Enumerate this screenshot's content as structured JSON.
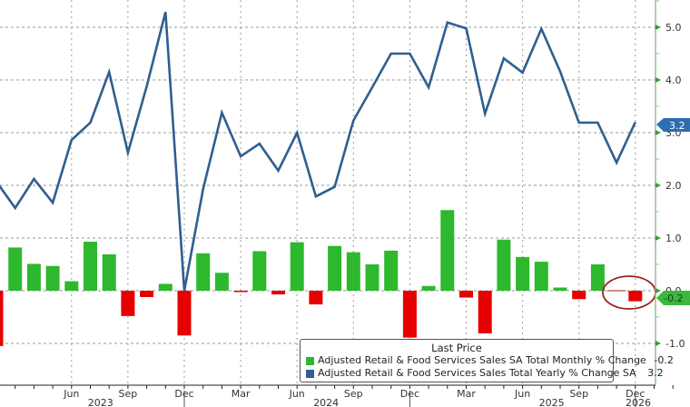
{
  "chart_data": {
    "type": "bar+line",
    "title": "",
    "xlabel": "",
    "ylabel": "",
    "ylim": [
      -1.7,
      5.5
    ],
    "y_ticks": [
      -1.0,
      0.0,
      1.0,
      2.0,
      3.0,
      4.0,
      5.0
    ],
    "y_tick_labels": [
      "-1.0",
      "0.0",
      "1.0",
      "2.0",
      "3.0",
      "4.0",
      "5.0"
    ],
    "x_tick_labels": [
      {
        "label": "Jun",
        "year": "2023"
      },
      {
        "label": "Sep",
        "year": ""
      },
      {
        "label": "Dec",
        "year": ""
      },
      {
        "label": "Mar",
        "year": ""
      },
      {
        "label": "Jun",
        "year": "2024"
      },
      {
        "label": "Sep",
        "year": ""
      },
      {
        "label": "Dec",
        "year": ""
      },
      {
        "label": "Mar",
        "year": ""
      },
      {
        "label": "Jun",
        "year": "2025"
      },
      {
        "label": "Sep",
        "year": ""
      },
      {
        "label": "Dec",
        "year": ""
      },
      {
        "label": "",
        "year": "2026"
      }
    ],
    "grid": true,
    "legend_position": "bottom-right",
    "categories": [
      "Feb 2023",
      "Mar 2023",
      "Apr 2023",
      "May 2023",
      "Jun 2023",
      "Jul 2023",
      "Aug 2023",
      "Sep 2023",
      "Oct 2023",
      "Nov 2023",
      "Dec 2023",
      "Jan 2024",
      "Feb 2024",
      "Mar 2024",
      "Apr 2024",
      "May 2024",
      "Jun 2024",
      "Jul 2024",
      "Aug 2024",
      "Sep 2024",
      "Oct 2024",
      "Nov 2024",
      "Dec 2024",
      "Jan 2025",
      "Feb 2025",
      "Mar 2025",
      "Apr 2025",
      "May 2025",
      "Jun 2025",
      "Jul 2025",
      "Aug 2025",
      "Sep 2025",
      "Oct 2025",
      "Nov 2025",
      "Dec 2025"
    ],
    "series": [
      {
        "name": "Adjusted Retail & Food Services Sales SA Total Monthly % Change",
        "type": "bar",
        "color_positive": "#2eb82e",
        "color_negative": "#e60000",
        "values": [
          -1.05,
          0.82,
          0.51,
          0.47,
          0.18,
          0.93,
          0.69,
          -0.48,
          -0.12,
          0.13,
          -0.85,
          0.71,
          0.34,
          -0.02,
          0.75,
          -0.07,
          0.92,
          -0.26,
          0.85,
          0.73,
          0.5,
          0.76,
          -0.89,
          0.09,
          1.53,
          -0.13,
          -0.81,
          0.97,
          0.64,
          0.55,
          0.06,
          -0.16,
          0.5,
          0.0,
          -0.2
        ]
      },
      {
        "name": "Adjusted Retail & Food Services Sales Total Yearly % Change SA",
        "type": "line",
        "color": "#2f5f8f",
        "values": [
          2.07,
          1.57,
          2.12,
          1.67,
          2.86,
          3.19,
          4.15,
          2.62,
          3.88,
          5.29,
          0.0,
          1.93,
          3.38,
          2.55,
          2.79,
          2.28,
          3.0,
          1.79,
          1.97,
          3.23,
          3.86,
          4.5,
          4.5,
          3.86,
          5.09,
          4.98,
          3.36,
          4.41,
          4.14,
          4.97,
          4.16,
          3.19,
          3.19,
          2.43,
          3.2
        ]
      }
    ],
    "annotations": [
      {
        "type": "ellipse",
        "color": "#a02020",
        "note": "circled last two monthly bars"
      }
    ]
  },
  "legend": {
    "title": "Last Price",
    "items": [
      {
        "label": "Adjusted Retail & Food Services Sales SA Total Monthly % Change",
        "value": "-0.2",
        "color": "#2eb82e"
      },
      {
        "label": "Adjusted Retail & Food Services Sales Total Yearly % Change SA",
        "value": "3.2",
        "color": "#2f5f8f"
      }
    ]
  },
  "last_value_tags": {
    "yearly": {
      "text": "3.2",
      "color": "#2e6db0"
    },
    "monthly": {
      "text": "-0.2",
      "color": "#3cb83c"
    }
  }
}
